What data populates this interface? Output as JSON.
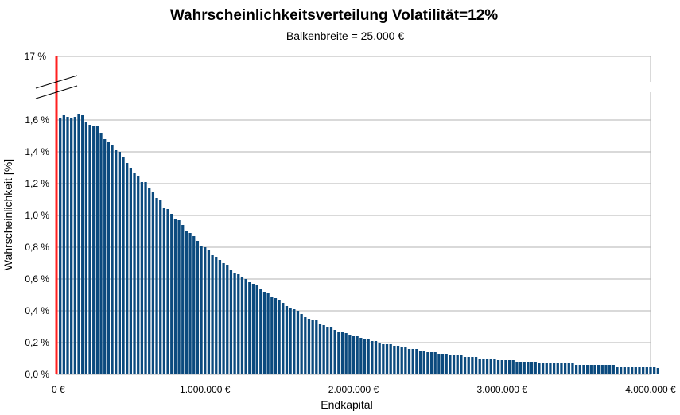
{
  "chart_data": {
    "type": "bar",
    "title": "Wahrscheinlichkeitsverteilung Volatilität=12%",
    "subtitle": "Balkenbreite = 25.000 €",
    "xlabel": "Endkapital",
    "ylabel": "Wahrscheinlichkeit [%]",
    "x_tick_labels": [
      "0 €",
      "1.000.000 €",
      "2.000.000 €",
      "3.000.000 €",
      "4.000.000 €"
    ],
    "x_tick_values": [
      0,
      1000000,
      2000000,
      3000000,
      4000000
    ],
    "y_tick_labels": [
      "0,0 %",
      "0,2 %",
      "0,4 %",
      "0,6 %",
      "0,8 %",
      "1,0 %",
      "1,2 %",
      "1,4 %",
      "1,6 %"
    ],
    "y_tick_values": [
      0,
      0.2,
      0.4,
      0.6,
      0.8,
      1.0,
      1.2,
      1.4,
      1.6
    ],
    "y_break_label": "17 %",
    "ylim": [
      0,
      1.75
    ],
    "y_axis_break": true,
    "grid": true,
    "bin_width": 25000,
    "special_bar": {
      "x": 0,
      "value": 17,
      "color": "#ff2020"
    },
    "bar_color": "#0b4a7e",
    "series": [
      {
        "x_start": 25000,
        "x_step": 25000,
        "values": [
          1.61,
          1.63,
          1.62,
          1.61,
          1.62,
          1.64,
          1.63,
          1.59,
          1.57,
          1.56,
          1.56,
          1.52,
          1.48,
          1.46,
          1.44,
          1.41,
          1.4,
          1.37,
          1.33,
          1.3,
          1.27,
          1.25,
          1.21,
          1.21,
          1.17,
          1.15,
          1.11,
          1.1,
          1.05,
          1.04,
          1.01,
          0.98,
          0.97,
          0.94,
          0.9,
          0.89,
          0.87,
          0.84,
          0.81,
          0.8,
          0.78,
          0.75,
          0.74,
          0.72,
          0.7,
          0.69,
          0.66,
          0.64,
          0.63,
          0.61,
          0.6,
          0.58,
          0.57,
          0.56,
          0.54,
          0.52,
          0.51,
          0.49,
          0.48,
          0.47,
          0.45,
          0.43,
          0.42,
          0.41,
          0.4,
          0.38,
          0.36,
          0.35,
          0.34,
          0.34,
          0.32,
          0.31,
          0.3,
          0.3,
          0.28,
          0.27,
          0.27,
          0.26,
          0.25,
          0.24,
          0.24,
          0.23,
          0.22,
          0.22,
          0.21,
          0.21,
          0.2,
          0.19,
          0.19,
          0.19,
          0.18,
          0.18,
          0.17,
          0.17,
          0.16,
          0.16,
          0.16,
          0.15,
          0.15,
          0.14,
          0.14,
          0.14,
          0.13,
          0.13,
          0.13,
          0.12,
          0.12,
          0.12,
          0.12,
          0.11,
          0.11,
          0.11,
          0.11,
          0.1,
          0.1,
          0.1,
          0.1,
          0.1,
          0.09,
          0.09,
          0.09,
          0.09,
          0.09,
          0.08,
          0.08,
          0.08,
          0.08,
          0.08,
          0.08,
          0.07,
          0.07,
          0.07,
          0.07,
          0.07,
          0.07,
          0.07,
          0.07,
          0.07,
          0.07,
          0.06,
          0.06,
          0.06,
          0.06,
          0.06,
          0.06,
          0.06,
          0.06,
          0.06,
          0.06,
          0.06,
          0.05,
          0.05,
          0.05,
          0.05,
          0.05,
          0.05,
          0.05,
          0.05,
          0.05,
          0.05,
          0.05,
          0.04
        ]
      }
    ]
  }
}
